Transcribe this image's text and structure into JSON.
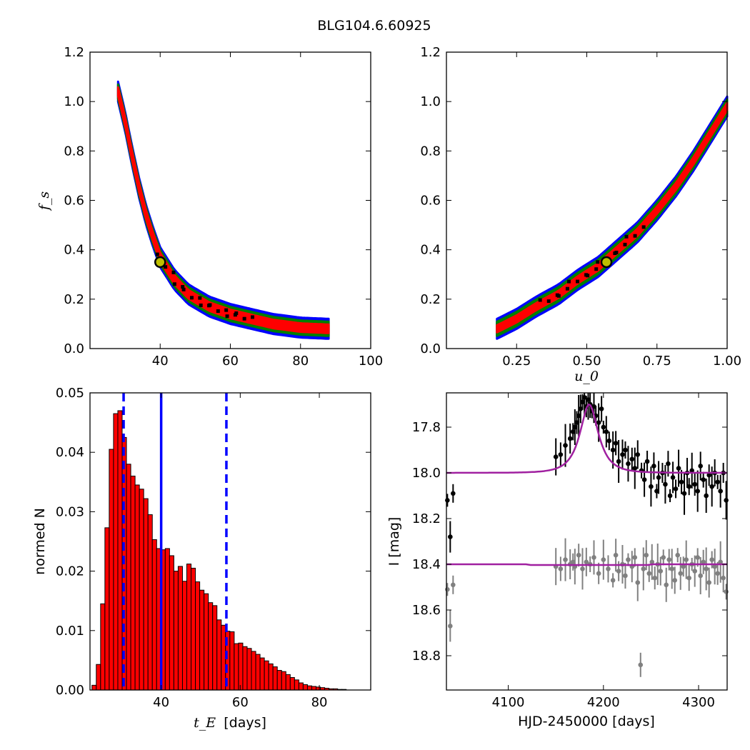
{
  "figure": {
    "title": "BLG104.6.60925"
  },
  "colors": {
    "blue": "#0000ff",
    "green": "#007f00",
    "red": "#ff0000",
    "black": "#000000",
    "purple": "#a020a0",
    "gray": "#808080",
    "marker_fill": "#bfbf00"
  },
  "chart_data": [
    {
      "id": "fs_vs_tE",
      "type": "heatmap",
      "title": "",
      "xlabel": "",
      "ylabel": "f_s",
      "xlim": [
        20,
        100
      ],
      "ylim": [
        0.0,
        1.2
      ],
      "xticks": [
        40,
        60,
        80,
        100
      ],
      "xtick_labels": [
        "40",
        "60",
        "80",
        "100"
      ],
      "yticks": [
        0.0,
        0.2,
        0.4,
        0.6,
        0.8,
        1.0,
        1.2
      ],
      "ytick_labels": [
        "0.0",
        "0.2",
        "0.4",
        "0.6",
        "0.8",
        "1.0",
        "1.2"
      ],
      "contour_levels": [
        "3-sigma (blue)",
        "2-sigma (green)",
        "1-sigma (red)",
        "samples (black)"
      ],
      "ridge": [
        {
          "x": 28,
          "y": 1.04
        },
        {
          "x": 30,
          "y": 0.92
        },
        {
          "x": 32,
          "y": 0.78
        },
        {
          "x": 34,
          "y": 0.65
        },
        {
          "x": 36,
          "y": 0.54
        },
        {
          "x": 38,
          "y": 0.45
        },
        {
          "x": 40,
          "y": 0.37
        },
        {
          "x": 44,
          "y": 0.28
        },
        {
          "x": 48,
          "y": 0.22
        },
        {
          "x": 54,
          "y": 0.17
        },
        {
          "x": 60,
          "y": 0.14
        },
        {
          "x": 66,
          "y": 0.12
        },
        {
          "x": 72,
          "y": 0.1
        },
        {
          "x": 80,
          "y": 0.085
        },
        {
          "x": 88,
          "y": 0.08
        }
      ],
      "best_fit": {
        "x": 40,
        "y": 0.35
      }
    },
    {
      "id": "fs_vs_u0",
      "type": "heatmap",
      "title": "",
      "xlabel": "u_0",
      "ylabel": "",
      "xlim": [
        0.0,
        1.0
      ],
      "ylim": [
        0.0,
        1.2
      ],
      "xticks": [
        0.25,
        0.5,
        0.75,
        1.0
      ],
      "xtick_labels": [
        "0.25",
        "0.50",
        "0.75",
        "1.00"
      ],
      "yticks": [
        0.0,
        0.2,
        0.4,
        0.6,
        0.8,
        1.0,
        1.2
      ],
      "ytick_labels": [
        "0.0",
        "0.2",
        "0.4",
        "0.6",
        "0.8",
        "1.0",
        "1.2"
      ],
      "ridge": [
        {
          "x": 0.18,
          "y": 0.08
        },
        {
          "x": 0.25,
          "y": 0.12
        },
        {
          "x": 0.32,
          "y": 0.17
        },
        {
          "x": 0.4,
          "y": 0.22
        },
        {
          "x": 0.47,
          "y": 0.28
        },
        {
          "x": 0.54,
          "y": 0.33
        },
        {
          "x": 0.6,
          "y": 0.39
        },
        {
          "x": 0.68,
          "y": 0.47
        },
        {
          "x": 0.75,
          "y": 0.56
        },
        {
          "x": 0.82,
          "y": 0.66
        },
        {
          "x": 0.88,
          "y": 0.76
        },
        {
          "x": 0.94,
          "y": 0.87
        },
        {
          "x": 1.0,
          "y": 0.98
        }
      ],
      "best_fit": {
        "x": 0.57,
        "y": 0.35
      }
    },
    {
      "id": "tE_histogram",
      "type": "bar",
      "title": "",
      "xlabel": "t_E",
      "xlabel_unit": "[days]",
      "ylabel": "normed N",
      "xlim": [
        22,
        93
      ],
      "ylim": [
        0.0,
        0.05
      ],
      "xticks": [
        40,
        60,
        80
      ],
      "xtick_labels": [
        "40",
        "60",
        "80"
      ],
      "yticks": [
        0.0,
        0.01,
        0.02,
        0.03,
        0.04,
        0.05
      ],
      "ytick_labels": [
        "0.00",
        "0.01",
        "0.02",
        "0.03",
        "0.04",
        "0.05"
      ],
      "bin_start": 22.5,
      "bin_width": 1.09,
      "values": [
        0.0008,
        0.0043,
        0.0145,
        0.0273,
        0.0405,
        0.0465,
        0.047,
        0.0425,
        0.038,
        0.036,
        0.0345,
        0.0338,
        0.0322,
        0.0295,
        0.0253,
        0.0238,
        0.0236,
        0.0238,
        0.0226,
        0.02,
        0.0208,
        0.0183,
        0.0212,
        0.0205,
        0.0182,
        0.0168,
        0.0162,
        0.0147,
        0.0142,
        0.0118,
        0.0109,
        0.0099,
        0.0098,
        0.0078,
        0.0079,
        0.0073,
        0.007,
        0.0065,
        0.006,
        0.0054,
        0.0049,
        0.0044,
        0.0039,
        0.0033,
        0.0031,
        0.0026,
        0.0021,
        0.0017,
        0.0012,
        0.0009,
        0.0007,
        0.0006,
        0.0005,
        0.0004,
        0.0003,
        0.0002,
        0.0002,
        0.0001,
        0.0001
      ],
      "vlines": [
        {
          "x": 30.5,
          "style": "dashed"
        },
        {
          "x": 40.0,
          "style": "solid"
        },
        {
          "x": 56.5,
          "style": "dashed"
        }
      ]
    },
    {
      "id": "light_curve",
      "type": "scatter",
      "title": "",
      "xlabel": "HJD-2450000 [days]",
      "ylabel": "I [mag]",
      "xlim": [
        4035,
        4330
      ],
      "ylim": [
        18.95,
        17.65
      ],
      "xticks": [
        4100,
        4200,
        4300
      ],
      "xtick_labels": [
        "4100",
        "4200",
        "4300"
      ],
      "yticks": [
        17.8,
        18.0,
        18.2,
        18.4,
        18.6,
        18.8
      ],
      "ytick_labels": [
        "17.8",
        "18.0",
        "18.2",
        "18.4",
        "18.6",
        "18.8"
      ],
      "model": {
        "baseline": 18.0,
        "peak_mag": 17.7,
        "t0": 4185,
        "tE": 40,
        "u0": 0.57
      },
      "residual_model_level": 18.4,
      "series": [
        {
          "color": "black",
          "points": [
            [
              4036,
              18.12
            ],
            [
              4039,
              18.28
            ],
            [
              4042,
              18.09
            ],
            [
              4150,
              17.93
            ],
            [
              4155,
              17.92
            ],
            [
              4160,
              17.88
            ],
            [
              4165,
              17.85
            ],
            [
              4168,
              17.82
            ],
            [
              4170,
              17.8
            ],
            [
              4172,
              17.78
            ],
            [
              4174,
              17.75
            ],
            [
              4176,
              17.72
            ],
            [
              4178,
              17.69
            ],
            [
              4180,
              17.67
            ],
            [
              4182,
              17.71
            ],
            [
              4184,
              17.68
            ],
            [
              4186,
              17.7
            ],
            [
              4188,
              17.73
            ],
            [
              4190,
              17.71
            ],
            [
              4192,
              17.75
            ],
            [
              4195,
              17.78
            ],
            [
              4198,
              17.72
            ],
            [
              4200,
              17.8
            ],
            [
              4203,
              17.82
            ],
            [
              4206,
              17.86
            ],
            [
              4210,
              17.9
            ],
            [
              4213,
              17.87
            ],
            [
              4216,
              17.95
            ],
            [
              4220,
              17.92
            ],
            [
              4223,
              17.9
            ],
            [
              4226,
              17.96
            ],
            [
              4230,
              17.94
            ],
            [
              4233,
              17.98
            ],
            [
              4236,
              17.92
            ],
            [
              4240,
              17.99
            ],
            [
              4243,
              18.03
            ],
            [
              4246,
              17.95
            ],
            [
              4250,
              18.06
            ],
            [
              4253,
              17.97
            ],
            [
              4256,
              18.08
            ],
            [
              4258,
              18.02
            ],
            [
              4262,
              18.0
            ],
            [
              4265,
              18.05
            ],
            [
              4268,
              17.96
            ],
            [
              4270,
              18.1
            ],
            [
              4273,
              18.02
            ],
            [
              4276,
              18.07
            ],
            [
              4279,
              17.98
            ],
            [
              4282,
              18.04
            ],
            [
              4285,
              18.09
            ],
            [
              4288,
              18.0
            ],
            [
              4290,
              18.06
            ],
            [
              4293,
              17.99
            ],
            [
              4296,
              18.05
            ],
            [
              4299,
              18.08
            ],
            [
              4302,
              17.97
            ],
            [
              4305,
              18.03
            ],
            [
              4308,
              18.1
            ],
            [
              4311,
              18.01
            ],
            [
              4314,
              18.06
            ],
            [
              4317,
              18.0
            ],
            [
              4320,
              18.04
            ],
            [
              4323,
              18.08
            ],
            [
              4326,
              18.0
            ],
            [
              4329,
              18.12
            ]
          ]
        },
        {
          "color": "gray",
          "points": [
            [
              4036,
              18.51
            ],
            [
              4039,
              18.67
            ],
            [
              4042,
              18.49
            ],
            [
              4150,
              18.41
            ],
            [
              4155,
              18.42
            ],
            [
              4160,
              18.38
            ],
            [
              4165,
              18.4
            ],
            [
              4168,
              18.39
            ],
            [
              4170,
              18.41
            ],
            [
              4174,
              18.36
            ],
            [
              4178,
              18.42
            ],
            [
              4182,
              18.39
            ],
            [
              4186,
              18.4
            ],
            [
              4190,
              18.37
            ],
            [
              4195,
              18.44
            ],
            [
              4200,
              18.38
            ],
            [
              4205,
              18.42
            ],
            [
              4210,
              18.47
            ],
            [
              4213,
              18.36
            ],
            [
              4216,
              18.43
            ],
            [
              4220,
              18.4
            ],
            [
              4223,
              18.45
            ],
            [
              4226,
              18.38
            ],
            [
              4230,
              18.41
            ],
            [
              4233,
              18.37
            ],
            [
              4236,
              18.48
            ],
            [
              4239,
              18.84
            ],
            [
              4242,
              18.42
            ],
            [
              4245,
              18.36
            ],
            [
              4248,
              18.44
            ],
            [
              4251,
              18.39
            ],
            [
              4254,
              18.46
            ],
            [
              4257,
              18.4
            ],
            [
              4260,
              18.43
            ],
            [
              4263,
              18.37
            ],
            [
              4266,
              18.49
            ],
            [
              4269,
              18.38
            ],
            [
              4272,
              18.42
            ],
            [
              4275,
              18.47
            ],
            [
              4278,
              18.36
            ],
            [
              4281,
              18.44
            ],
            [
              4284,
              18.41
            ],
            [
              4287,
              18.38
            ],
            [
              4290,
              18.46
            ],
            [
              4293,
              18.4
            ],
            [
              4296,
              18.43
            ],
            [
              4299,
              18.37
            ],
            [
              4302,
              18.45
            ],
            [
              4305,
              18.39
            ],
            [
              4308,
              18.42
            ],
            [
              4311,
              18.48
            ],
            [
              4314,
              18.38
            ],
            [
              4317,
              18.41
            ],
            [
              4320,
              18.44
            ],
            [
              4323,
              18.39
            ],
            [
              4326,
              18.46
            ],
            [
              4329,
              18.52
            ]
          ]
        }
      ]
    }
  ]
}
